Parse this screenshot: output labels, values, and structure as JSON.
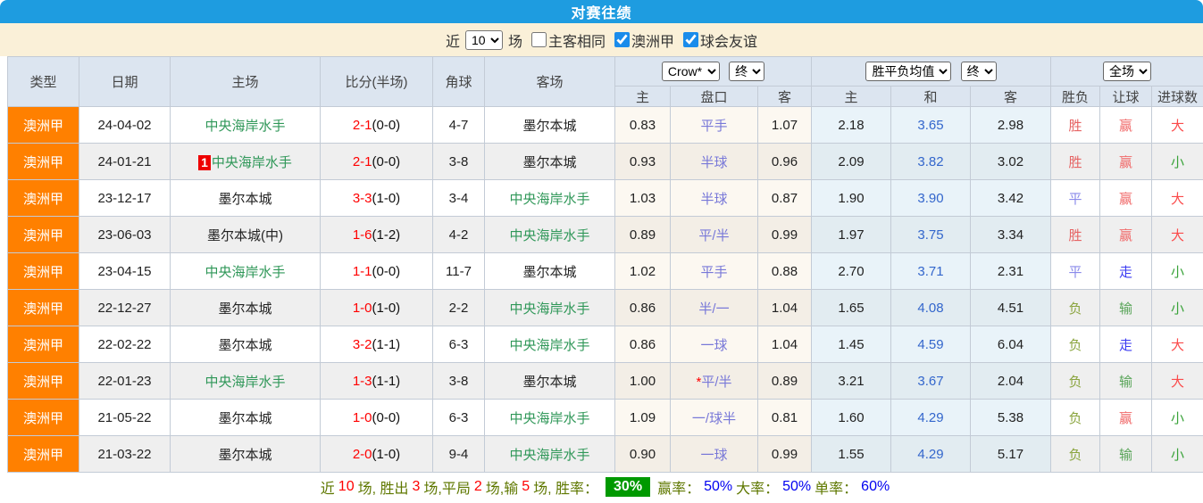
{
  "title": "对赛往绩",
  "colors": {
    "title_bar": "#1e9ce0",
    "filter_bar": "#faf0d8",
    "header_bg": "#dce5f0",
    "league_cell": "#ff8000",
    "team_highlight_green": "#2f9758",
    "score_red": "#ff0000",
    "win_rate_badge_green": "#009900",
    "percent_blue": "#0000f0"
  },
  "filters": {
    "near_label": "近",
    "count_value": "10",
    "games_label": "场",
    "same_venue": {
      "label": "主客相同",
      "checked": false
    },
    "league": {
      "label": "澳洲甲",
      "checked": true
    },
    "friendly": {
      "label": "球会友谊",
      "checked": true
    }
  },
  "table": {
    "columns": [
      "类型",
      "日期",
      "主场",
      "比分(半场)",
      "角球",
      "客场"
    ],
    "selects": {
      "company": "Crow*",
      "company_state": "终",
      "avg": "胜平负均值",
      "avg_state": "终",
      "scope": "全场"
    },
    "sub_columns": [
      "主",
      "盘口",
      "客",
      "主",
      "和",
      "客",
      "胜负",
      "让球",
      "进球数"
    ],
    "rows": [
      {
        "type": "澳洲甲",
        "date": "24-04-02",
        "home": "中央海岸水手",
        "home_green": true,
        "home_badge": "",
        "score_main": "2-1",
        "score_half": "(0-0)",
        "corner": "4-7",
        "away": "墨尔本城",
        "away_green": false,
        "odds_home": "0.83",
        "handicap": "平手",
        "handicap_star": false,
        "odds_away": "1.07",
        "avg_home": "2.18",
        "avg_draw": "3.65",
        "avg_away": "2.98",
        "result": "胜",
        "result_type": "win",
        "handicap_result": "赢",
        "handicap_result_type": "win",
        "goals": "大",
        "goals_type": "big"
      },
      {
        "type": "澳洲甲",
        "date": "24-01-21",
        "home": "中央海岸水手",
        "home_green": true,
        "home_badge": "1",
        "score_main": "2-1",
        "score_half": "(0-0)",
        "corner": "3-8",
        "away": "墨尔本城",
        "away_green": false,
        "odds_home": "0.93",
        "handicap": "半球",
        "handicap_star": false,
        "odds_away": "0.96",
        "avg_home": "2.09",
        "avg_draw": "3.82",
        "avg_away": "3.02",
        "result": "胜",
        "result_type": "win",
        "handicap_result": "赢",
        "handicap_result_type": "win",
        "goals": "小",
        "goals_type": "small"
      },
      {
        "type": "澳洲甲",
        "date": "23-12-17",
        "home": "墨尔本城",
        "home_green": false,
        "home_badge": "",
        "score_main": "3-3",
        "score_half": "(1-0)",
        "corner": "3-4",
        "away": "中央海岸水手",
        "away_green": true,
        "odds_home": "1.03",
        "handicap": "半球",
        "handicap_star": false,
        "odds_away": "0.87",
        "avg_home": "1.90",
        "avg_draw": "3.90",
        "avg_away": "3.42",
        "result": "平",
        "result_type": "draw",
        "handicap_result": "赢",
        "handicap_result_type": "win",
        "goals": "大",
        "goals_type": "big"
      },
      {
        "type": "澳洲甲",
        "date": "23-06-03",
        "home": "墨尔本城(中)",
        "home_green": false,
        "home_badge": "",
        "score_main": "1-6",
        "score_half": "(1-2)",
        "corner": "4-2",
        "away": "中央海岸水手",
        "away_green": true,
        "odds_home": "0.89",
        "handicap": "平/半",
        "handicap_star": false,
        "odds_away": "0.99",
        "avg_home": "1.97",
        "avg_draw": "3.75",
        "avg_away": "3.34",
        "result": "胜",
        "result_type": "win",
        "handicap_result": "赢",
        "handicap_result_type": "win",
        "goals": "大",
        "goals_type": "big"
      },
      {
        "type": "澳洲甲",
        "date": "23-04-15",
        "home": "中央海岸水手",
        "home_green": true,
        "home_badge": "",
        "score_main": "1-1",
        "score_half": "(0-0)",
        "corner": "11-7",
        "away": "墨尔本城",
        "away_green": false,
        "odds_home": "1.02",
        "handicap": "平手",
        "handicap_star": false,
        "odds_away": "0.88",
        "avg_home": "2.70",
        "avg_draw": "3.71",
        "avg_away": "2.31",
        "result": "平",
        "result_type": "draw",
        "handicap_result": "走",
        "handicap_result_type": "go",
        "goals": "小",
        "goals_type": "small"
      },
      {
        "type": "澳洲甲",
        "date": "22-12-27",
        "home": "墨尔本城",
        "home_green": false,
        "home_badge": "",
        "score_main": "1-0",
        "score_half": "(1-0)",
        "corner": "2-2",
        "away": "中央海岸水手",
        "away_green": true,
        "odds_home": "0.86",
        "handicap": "半/一",
        "handicap_star": false,
        "odds_away": "1.04",
        "avg_home": "1.65",
        "avg_draw": "4.08",
        "avg_away": "4.51",
        "result": "负",
        "result_type": "lose",
        "handicap_result": "输",
        "handicap_result_type": "lose",
        "goals": "小",
        "goals_type": "small"
      },
      {
        "type": "澳洲甲",
        "date": "22-02-22",
        "home": "墨尔本城",
        "home_green": false,
        "home_badge": "",
        "score_main": "3-2",
        "score_half": "(1-1)",
        "corner": "6-3",
        "away": "中央海岸水手",
        "away_green": true,
        "odds_home": "0.86",
        "handicap": "一球",
        "handicap_star": false,
        "odds_away": "1.04",
        "avg_home": "1.45",
        "avg_draw": "4.59",
        "avg_away": "6.04",
        "result": "负",
        "result_type": "lose",
        "handicap_result": "走",
        "handicap_result_type": "go",
        "goals": "大",
        "goals_type": "big"
      },
      {
        "type": "澳洲甲",
        "date": "22-01-23",
        "home": "中央海岸水手",
        "home_green": true,
        "home_badge": "",
        "score_main": "1-3",
        "score_half": "(1-1)",
        "corner": "3-8",
        "away": "墨尔本城",
        "away_green": false,
        "odds_home": "1.00",
        "handicap": "平/半",
        "handicap_star": true,
        "odds_away": "0.89",
        "avg_home": "3.21",
        "avg_draw": "3.67",
        "avg_away": "2.04",
        "result": "负",
        "result_type": "lose",
        "handicap_result": "输",
        "handicap_result_type": "lose",
        "goals": "大",
        "goals_type": "big"
      },
      {
        "type": "澳洲甲",
        "date": "21-05-22",
        "home": "墨尔本城",
        "home_green": false,
        "home_badge": "",
        "score_main": "1-0",
        "score_half": "(0-0)",
        "corner": "6-3",
        "away": "中央海岸水手",
        "away_green": true,
        "odds_home": "1.09",
        "handicap": "一/球半",
        "handicap_star": false,
        "odds_away": "0.81",
        "avg_home": "1.60",
        "avg_draw": "4.29",
        "avg_away": "5.38",
        "result": "负",
        "result_type": "lose",
        "handicap_result": "赢",
        "handicap_result_type": "win",
        "goals": "小",
        "goals_type": "small"
      },
      {
        "type": "澳洲甲",
        "date": "21-03-22",
        "home": "墨尔本城",
        "home_green": false,
        "home_badge": "",
        "score_main": "2-0",
        "score_half": "(1-0)",
        "corner": "9-4",
        "away": "中央海岸水手",
        "away_green": true,
        "odds_home": "0.90",
        "handicap": "一球",
        "handicap_star": false,
        "odds_away": "0.99",
        "avg_home": "1.55",
        "avg_draw": "4.29",
        "avg_away": "5.17",
        "result": "负",
        "result_type": "lose",
        "handicap_result": "输",
        "handicap_result_type": "lose",
        "goals": "小",
        "goals_type": "small"
      }
    ]
  },
  "footer": {
    "seg1": "近",
    "games": "10",
    "seg2": "场, 胜出",
    "wins": "3",
    "seg3": "场,平局",
    "draws": "2",
    "seg4": "场,输",
    "losses": "5",
    "seg5": "场, 胜率：",
    "win_rate": "30%",
    "seg6": "赢率：",
    "handicap_win_rate": "50%",
    "seg7": "大率：",
    "big_rate": "50%",
    "seg8": "单率：",
    "odd_rate": "60%"
  }
}
